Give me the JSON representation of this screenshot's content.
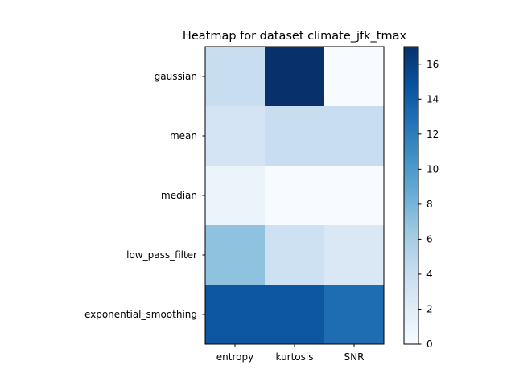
{
  "chart_data": {
    "type": "heatmap",
    "title": "Heatmap for dataset climate_jfk_tmax",
    "x_categories": [
      "entropy",
      "kurtosis",
      "SNR"
    ],
    "y_categories": [
      "gaussian",
      "mean",
      "median",
      "low_pass_filter",
      "exponential_smoothing"
    ],
    "values": [
      [
        4,
        17,
        0
      ],
      [
        3,
        4,
        4
      ],
      [
        1,
        0,
        0
      ],
      [
        7,
        3.5,
        2.5
      ],
      [
        14.5,
        14.5,
        13
      ]
    ],
    "colorbar": {
      "min": 0,
      "max": 17,
      "ticks": [
        0,
        2,
        4,
        6,
        8,
        10,
        12,
        14,
        16
      ],
      "tick_labels": [
        "0",
        "2",
        "4",
        "6",
        "8",
        "10",
        "12",
        "14",
        "16"
      ]
    },
    "colormap": "Blues",
    "colormap_stops": [
      "#f7fbff",
      "#deebf7",
      "#c6dbef",
      "#9ecae1",
      "#6baed6",
      "#4292c6",
      "#2171b5",
      "#08519c",
      "#08306b"
    ]
  }
}
